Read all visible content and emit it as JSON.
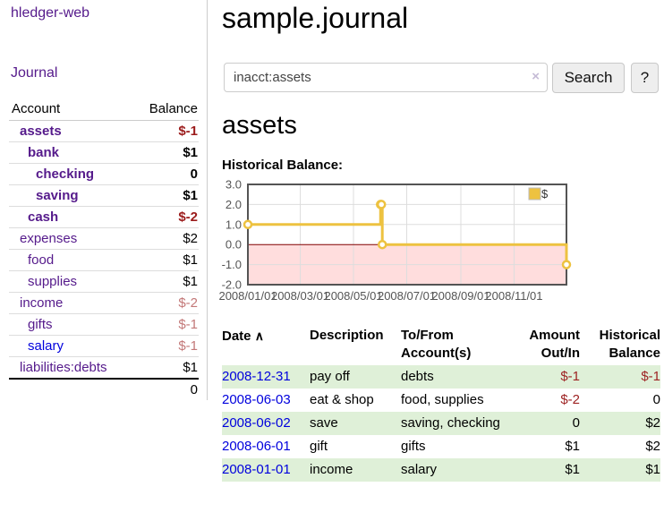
{
  "app": {
    "title": "hledger-web"
  },
  "sidebar": {
    "journal_link": "Journal",
    "table": {
      "headers": {
        "account": "Account",
        "balance": "Balance"
      },
      "rows": [
        {
          "label": "assets",
          "row_class": "d1 b",
          "link_class": "alink-purple",
          "balance": "$-1",
          "balance_class": "neg1"
        },
        {
          "label": "bank",
          "row_class": "d2 b",
          "link_class": "alink-purple",
          "balance": "$1",
          "balance_class": ""
        },
        {
          "label": "checking",
          "row_class": "d3 b",
          "link_class": "alink-purple",
          "balance": "0",
          "balance_class": ""
        },
        {
          "label": "saving",
          "row_class": "d3 b",
          "link_class": "alink-purple",
          "balance": "$1",
          "balance_class": ""
        },
        {
          "label": "cash",
          "row_class": "d2 b",
          "link_class": "alink-purple",
          "balance": "$-2",
          "balance_class": "neg1"
        },
        {
          "label": "expenses",
          "row_class": "d1",
          "link_class": "alink-purple",
          "balance": "$2",
          "balance_class": ""
        },
        {
          "label": "food",
          "row_class": "d2",
          "link_class": "alink-purple",
          "balance": "$1",
          "balance_class": ""
        },
        {
          "label": "supplies",
          "row_class": "d2",
          "link_class": "alink-purple",
          "balance": "$1",
          "balance_class": ""
        },
        {
          "label": "income",
          "row_class": "d1",
          "link_class": "alink-purple",
          "balance": "$-2",
          "balance_class": "neg2"
        },
        {
          "label": "gifts",
          "row_class": "d2",
          "link_class": "alink-purple",
          "balance": "$-1",
          "balance_class": "neg2"
        },
        {
          "label": "salary",
          "row_class": "d2",
          "link_class": "alink-blue",
          "balance": "$-1",
          "balance_class": "neg2"
        },
        {
          "label": "liabilities:debts",
          "row_class": "d1",
          "link_class": "alink-purple",
          "balance": "$1",
          "balance_class": ""
        }
      ],
      "total": "0"
    }
  },
  "main": {
    "title": "sample.journal",
    "search": {
      "value": "inacct:assets",
      "clear_icon": "×",
      "button_label": "Search",
      "help_label": "?"
    },
    "account_heading": "assets",
    "chart_label": "Historical Balance:"
  },
  "chart_data": {
    "type": "line",
    "title": "Historical Balance:",
    "x_start": "2008-01-01",
    "x_span_days": 365,
    "ylim": [
      -2,
      3
    ],
    "y_ticks": [
      3,
      2,
      1,
      0,
      -1,
      -2
    ],
    "x_ticks": [
      "2008/01/01",
      "2008/03/01",
      "2008/05/01",
      "2008/07/01",
      "2008/09/01",
      "2008/11/01"
    ],
    "series": [
      {
        "name": "$",
        "color": "#edc240",
        "style": "step-with-markers",
        "points": [
          [
            "2008-01-01",
            1
          ],
          [
            "2008-06-01",
            2
          ],
          [
            "2008-06-02",
            2
          ],
          [
            "2008-06-03",
            0
          ],
          [
            "2008-12-31",
            -1
          ]
        ]
      }
    ],
    "legend_position": "top-right",
    "grid": true,
    "negative_region_color": "#ffdddd",
    "zero_line_color": "#800000",
    "border_color": "#545454"
  },
  "register": {
    "headers": {
      "date": "Date",
      "sort_icon": "∧",
      "description": "Description",
      "accounts": "To/From Account(s)",
      "amount": "Amount Out/In",
      "balance": "Historical Balance"
    },
    "rows": [
      {
        "row_class": "green",
        "date": "2008-12-31",
        "description": "pay off",
        "accounts": "debts",
        "amount": "$-1",
        "amount_class": "tneg",
        "balance": "$-1",
        "balance_class": "tneg"
      },
      {
        "row_class": "",
        "date": "2008-06-03",
        "description": "eat & shop",
        "accounts": "food, supplies",
        "amount": "$-2",
        "amount_class": "tneg",
        "balance": "0",
        "balance_class": ""
      },
      {
        "row_class": "green",
        "date": "2008-06-02",
        "description": "save",
        "accounts": "saving, checking",
        "amount": "0",
        "amount_class": "",
        "balance": "$2",
        "balance_class": ""
      },
      {
        "row_class": "",
        "date": "2008-06-01",
        "description": "gift",
        "accounts": "gifts",
        "amount": "$1",
        "amount_class": "",
        "balance": "$2",
        "balance_class": ""
      },
      {
        "row_class": "green",
        "date": "2008-01-01",
        "description": "income",
        "accounts": "salary",
        "amount": "$1",
        "amount_class": "",
        "balance": "$1",
        "balance_class": ""
      }
    ]
  },
  "colors": {
    "link_purple": "#551a8b",
    "link_blue": "#0000dd",
    "negative_strong": "#9b1b1b",
    "negative_soft": "#c37878",
    "register_negative": "#9d2222",
    "stripe_green": "#dff0d8",
    "series_gold": "#edc240",
    "chart_border": "#545454"
  }
}
